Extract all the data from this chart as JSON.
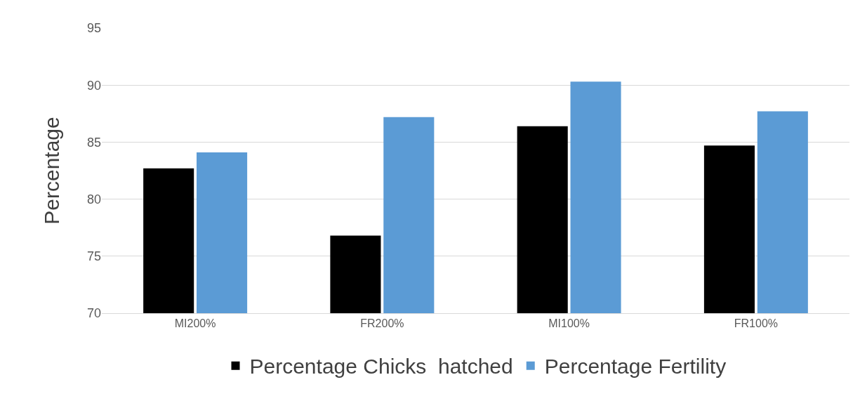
{
  "chart_data": {
    "type": "bar",
    "ylabel": "Percentage",
    "categories": [
      "MI200%",
      "FR200%",
      "MI100%",
      "FR100%"
    ],
    "series": [
      {
        "name": "Percentage Chicks  hatched",
        "color": "#000000",
        "values": [
          82.7,
          76.8,
          86.4,
          84.7
        ]
      },
      {
        "name": "Percentage Fertility",
        "color": "#5b9bd5",
        "values": [
          84.1,
          87.2,
          90.3,
          87.7
        ]
      }
    ],
    "ylim": [
      70,
      95
    ],
    "yticks": [
      70,
      75,
      80,
      85,
      90,
      95
    ],
    "grid": "y",
    "legend": "bottom"
  }
}
